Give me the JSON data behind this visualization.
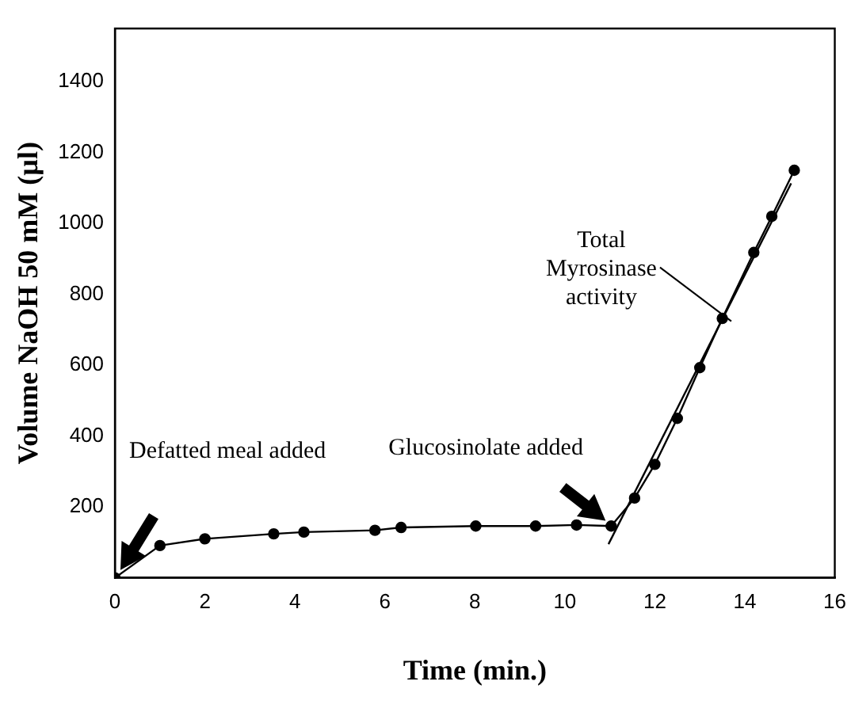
{
  "chart_data": {
    "type": "line",
    "xlabel": "Time (min.)",
    "ylabel": "Volume NaOH 50 mM (µl)",
    "series": [
      {
        "color": "#000000",
        "marker": "circle",
        "x": [
          0,
          1.0,
          2.0,
          3.53,
          4.2,
          5.78,
          6.36,
          8.02,
          9.35,
          10.26,
          11.03,
          11.55,
          12.0,
          12.5,
          13.0,
          13.5,
          14.2,
          14.6,
          15.1
        ],
        "values": [
          0,
          91,
          110,
          124,
          129,
          134,
          142,
          146,
          146,
          149,
          146,
          225,
          320,
          450,
          593,
          732,
          918,
          1020,
          1150
        ]
      },
      {
        "color": "#000000",
        "marker": "none",
        "x": [
          10.97,
          15.03
        ],
        "values": [
          95,
          1113
        ]
      }
    ],
    "xlim": [
      0,
      16
    ],
    "xticks": [
      0,
      2,
      4,
      6,
      8,
      10,
      12,
      14,
      16
    ],
    "ylim": [
      0,
      1550
    ],
    "yticks": [
      200,
      400,
      600,
      800,
      1000,
      1200,
      1400
    ],
    "grid": false,
    "legend": false,
    "annotations": [
      "Defatted meal added",
      "Glucosinolate added",
      {
        "text": "Total Myrosinase activity",
        "x": 13.7,
        "y": 724
      }
    ]
  }
}
